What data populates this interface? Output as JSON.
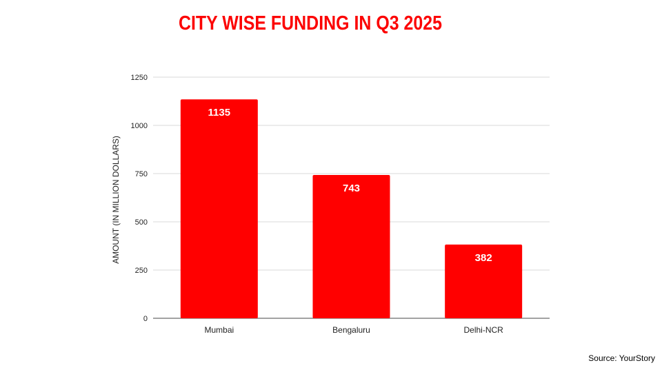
{
  "title": "CITY WISE FUNDING IN Q3 2025",
  "source": "Source: YourStory",
  "colors": {
    "title": "#fc0303",
    "bar": "#ff0000",
    "bar_label": "#ffffff",
    "grid": "#d9d9d9",
    "axis": "#444444"
  },
  "chart_data": {
    "type": "bar",
    "title": "CITY WISE FUNDING IN Q3 2025",
    "xlabel": "",
    "ylabel": "AMOUNT (IN MILLION DOLLARS)",
    "categories": [
      "Mumbai",
      "Bengaluru",
      "Delhi-NCR"
    ],
    "values": [
      1135,
      743,
      382
    ],
    "data_labels": [
      "1135",
      "743",
      "382"
    ],
    "ylim": [
      0,
      1250
    ],
    "yticks": [
      0,
      250,
      500,
      750,
      1000,
      1250
    ],
    "grid": true,
    "legend": "none"
  }
}
